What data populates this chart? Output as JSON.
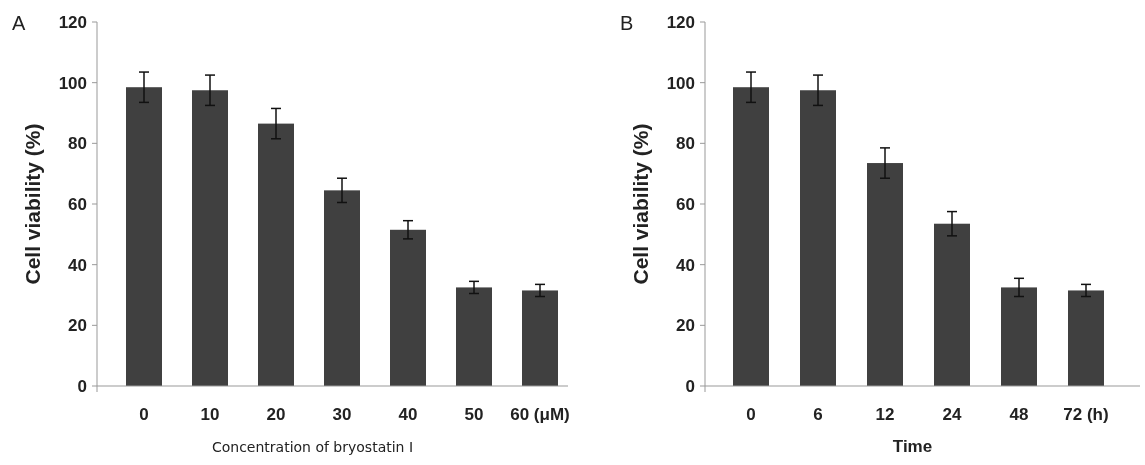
{
  "chart_data": [
    {
      "type": "bar",
      "annotations": [
        "A"
      ],
      "xlabel": "Concentration of bryostatin I",
      "ylabel": "Cell viability (%)",
      "categories": [
        "0",
        "10",
        "20",
        "30",
        "40",
        "50",
        "60 (μM)"
      ],
      "values": [
        98.5,
        97.5,
        86.5,
        64.5,
        51.5,
        32.5,
        31.5
      ],
      "errors": [
        5,
        5,
        5,
        4,
        3,
        2,
        2
      ],
      "color": "#404040",
      "ylim": [
        0,
        120
      ],
      "yticks": [
        0,
        20,
        40,
        60,
        80,
        100,
        120
      ]
    },
    {
      "type": "bar",
      "annotations": [
        "B"
      ],
      "xlabel": "Time",
      "ylabel": "Cell viability (%)",
      "categories": [
        "0",
        "6",
        "12",
        "24",
        "48",
        "72 (h)"
      ],
      "values": [
        98.5,
        97.5,
        73.5,
        53.5,
        32.5,
        31.5
      ],
      "errors": [
        5,
        5,
        5,
        4,
        3,
        2
      ],
      "color": "#404040",
      "ylim": [
        0,
        120
      ],
      "yticks": [
        0,
        20,
        40,
        60,
        80,
        100,
        120
      ]
    }
  ]
}
